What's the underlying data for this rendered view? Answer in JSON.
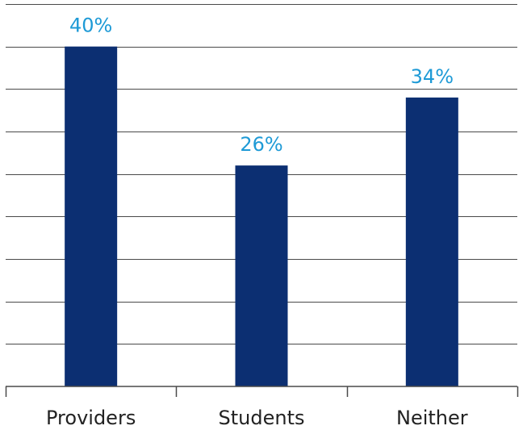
{
  "chart_data": {
    "type": "bar",
    "categories": [
      "Providers",
      "Students",
      "Neither"
    ],
    "values": [
      40,
      26,
      34
    ],
    "value_labels": [
      "40%",
      "26%",
      "34%"
    ],
    "title": "",
    "xlabel": "",
    "ylabel": "",
    "ylim": [
      0,
      45
    ],
    "grid": true,
    "colors": {
      "bar": "#0c2f72",
      "value_label": "#1e9ad6",
      "grid": "#4a4a4a",
      "category_label": "#222222"
    }
  }
}
